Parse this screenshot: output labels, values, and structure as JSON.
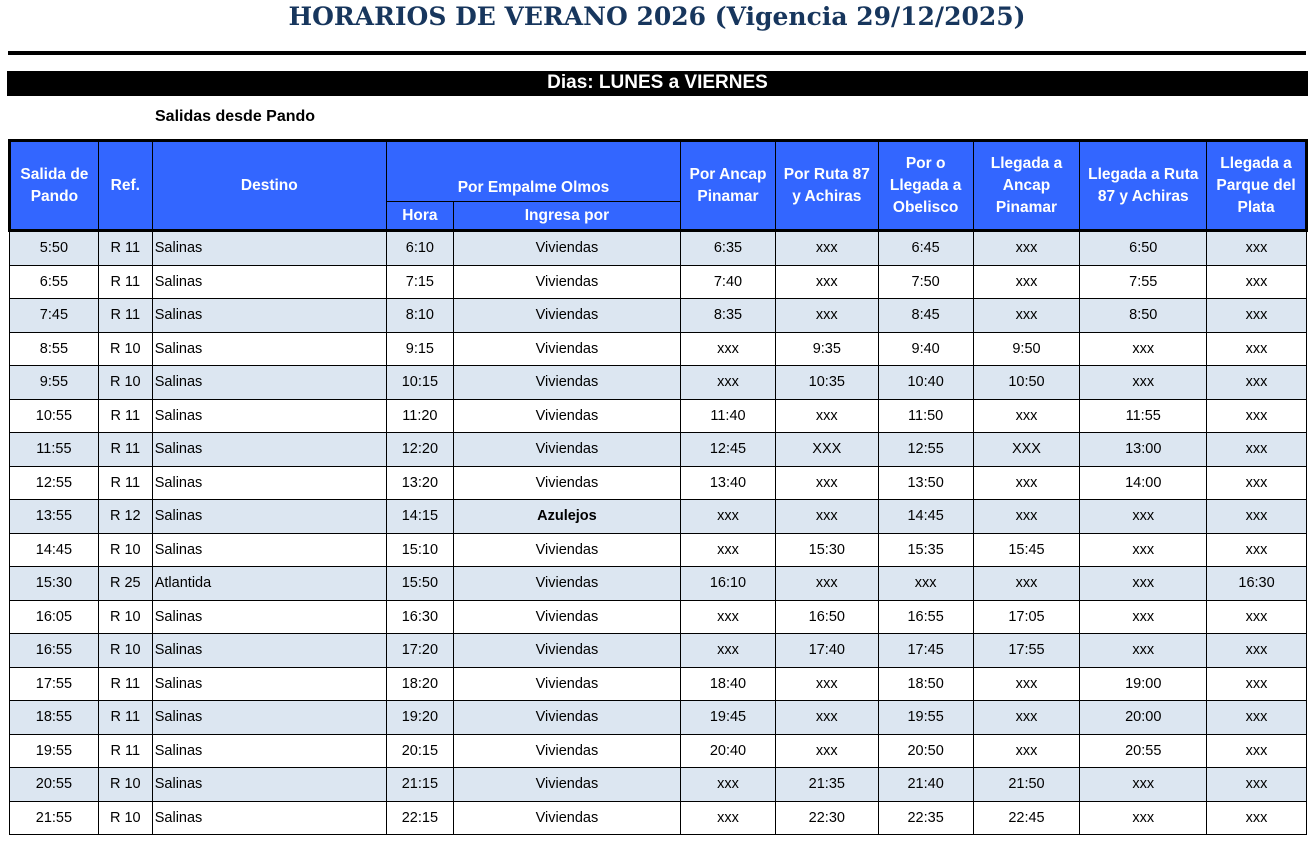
{
  "title": "HORARIOS DE VERANO 2026 (Vigencia 29/12/2025)",
  "days": "Dias: LUNES a VIERNES",
  "subtitle": "Salidas desde Pando",
  "colors": {
    "header": "#3366FF",
    "alt_row": "#DCE6F1",
    "title": "#17365D"
  },
  "headers": {
    "salida": "Salida de Pando",
    "ref": "Ref.",
    "destino": "Destino",
    "empalme": "Por Empalme Olmos",
    "hora": "Hora",
    "ingresa": "Ingresa por",
    "ancap": "Por Ancap Pinamar",
    "ruta87": "Por Ruta 87 y Achiras",
    "obelisco": "Por o Llegada a Obelisco",
    "lleg_ancap": "Llegada a Ancap Pinamar",
    "lleg_ruta87": "Llegada a Ruta 87 y Achiras",
    "lleg_parque": "Llegada a Parque del Plata"
  },
  "rows": [
    [
      "5:50",
      "R 11",
      "Salinas",
      "6:10",
      "Viviendas",
      "6:35",
      "xxx",
      "6:45",
      "xxx",
      "6:50",
      "xxx"
    ],
    [
      "6:55",
      "R 11",
      "Salinas",
      "7:15",
      "Viviendas",
      "7:40",
      "xxx",
      "7:50",
      "xxx",
      "7:55",
      "xxx"
    ],
    [
      "7:45",
      "R 11",
      "Salinas",
      "8:10",
      "Viviendas",
      "8:35",
      "xxx",
      "8:45",
      "xxx",
      "8:50",
      "xxx"
    ],
    [
      "8:55",
      "R 10",
      "Salinas",
      "9:15",
      "Viviendas",
      "xxx",
      "9:35",
      "9:40",
      "9:50",
      "xxx",
      "xxx"
    ],
    [
      "9:55",
      "R 10",
      "Salinas",
      "10:15",
      "Viviendas",
      "xxx",
      "10:35",
      "10:40",
      "10:50",
      "xxx",
      "xxx"
    ],
    [
      "10:55",
      "R 11",
      "Salinas",
      "11:20",
      "Viviendas",
      "11:40",
      "xxx",
      "11:50",
      "xxx",
      "11:55",
      "xxx"
    ],
    [
      "11:55",
      "R 11",
      "Salinas",
      "12:20",
      "Viviendas",
      "12:45",
      "XXX",
      "12:55",
      "XXX",
      "13:00",
      "xxx"
    ],
    [
      "12:55",
      "R 11",
      "Salinas",
      "13:20",
      "Viviendas",
      "13:40",
      "xxx",
      "13:50",
      "xxx",
      "14:00",
      "xxx"
    ],
    [
      "13:55",
      "R 12",
      "Salinas",
      "14:15",
      "Azulejos",
      "xxx",
      "xxx",
      "14:45",
      "xxx",
      "xxx",
      "xxx"
    ],
    [
      "14:45",
      "R 10",
      "Salinas",
      "15:10",
      "Viviendas",
      "xxx",
      "15:30",
      "15:35",
      "15:45",
      "xxx",
      "xxx"
    ],
    [
      "15:30",
      "R 25",
      "Atlantida",
      "15:50",
      "Viviendas",
      "16:10",
      "xxx",
      "xxx",
      "xxx",
      "xxx",
      "16:30"
    ],
    [
      "16:05",
      "R 10",
      "Salinas",
      "16:30",
      "Viviendas",
      "xxx",
      "16:50",
      "16:55",
      "17:05",
      "xxx",
      "xxx"
    ],
    [
      "16:55",
      "R 10",
      "Salinas",
      "17:20",
      "Viviendas",
      "xxx",
      "17:40",
      "17:45",
      "17:55",
      "xxx",
      "xxx"
    ],
    [
      "17:55",
      "R 11",
      "Salinas",
      "18:20",
      "Viviendas",
      "18:40",
      "xxx",
      "18:50",
      "xxx",
      "19:00",
      "xxx"
    ],
    [
      "18:55",
      "R 11",
      "Salinas",
      "19:20",
      "Viviendas",
      "19:45",
      "xxx",
      "19:55",
      "xxx",
      "20:00",
      "xxx"
    ],
    [
      "19:55",
      "R 11",
      "Salinas",
      "20:15",
      "Viviendas",
      "20:40",
      "xxx",
      "20:50",
      "xxx",
      "20:55",
      "xxx"
    ],
    [
      "20:55",
      "R 10",
      "Salinas",
      "21:15",
      "Viviendas",
      "xxx",
      "21:35",
      "21:40",
      "21:50",
      "xxx",
      "xxx"
    ],
    [
      "21:55",
      "R 10",
      "Salinas",
      "22:15",
      "Viviendas",
      "xxx",
      "22:30",
      "22:35",
      "22:45",
      "xxx",
      "xxx"
    ]
  ]
}
